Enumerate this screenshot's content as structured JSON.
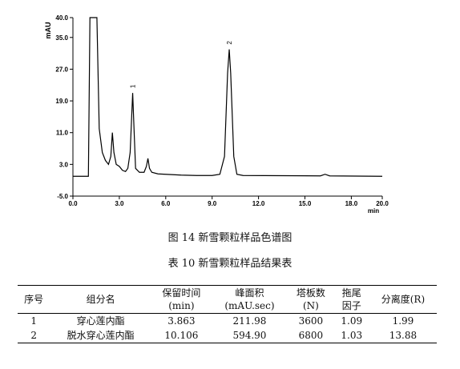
{
  "chart_data": {
    "type": "line",
    "y_label": "mAU",
    "x_label": "min",
    "x": [
      0,
      1.0,
      1.1,
      1.55,
      1.7,
      1.9,
      2.1,
      2.3,
      2.45,
      2.55,
      2.65,
      2.8,
      3.0,
      3.2,
      3.4,
      3.55,
      3.7,
      3.863,
      3.95,
      4.05,
      4.3,
      4.6,
      4.75,
      4.85,
      4.95,
      5.1,
      5.5,
      6.5,
      7.0,
      8.0,
      9.0,
      9.5,
      9.8,
      10.0,
      10.106,
      10.2,
      10.4,
      10.6,
      11.0,
      16.0,
      16.3,
      16.6,
      20.0
    ],
    "series": [
      {
        "color": "#000000",
        "values": [
          0,
          0,
          40,
          40,
          12,
          6,
          4,
          3,
          5,
          11,
          6,
          3,
          2.5,
          1.5,
          1.2,
          2,
          6,
          21,
          12,
          2,
          1,
          1,
          2.5,
          4.5,
          2,
          1,
          0.6,
          0.4,
          0.3,
          0.2,
          0.2,
          0.5,
          5,
          26,
          32,
          26,
          5,
          0.5,
          0.2,
          0.1,
          0.5,
          0.1,
          0
        ]
      }
    ],
    "xlim": [
      0,
      20
    ],
    "ylim": [
      -5,
      40
    ],
    "xticks": [
      {
        "value": 0,
        "label": "0.0"
      },
      {
        "value": 3,
        "label": "3.0"
      },
      {
        "value": 6,
        "label": "6.0"
      },
      {
        "value": 9,
        "label": "9.0"
      },
      {
        "value": 12,
        "label": "12.0"
      },
      {
        "value": 15,
        "label": "15.0"
      },
      {
        "value": 18,
        "label": "18.0"
      },
      {
        "value": 20,
        "label": "20.0"
      }
    ],
    "yticks": [
      {
        "value": -5,
        "label": "-5.0"
      },
      {
        "value": 3,
        "label": "3.0"
      },
      {
        "value": 11,
        "label": "11.0"
      },
      {
        "value": 19,
        "label": "19.0"
      },
      {
        "value": 27,
        "label": "27.0"
      },
      {
        "value": 35,
        "label": "35.0"
      },
      {
        "value": 40,
        "label": "40.0"
      }
    ],
    "annotations": [
      {
        "text": "1",
        "x": 3.863,
        "y": 21
      },
      {
        "text": "2",
        "x": 10.106,
        "y": 32
      }
    ]
  },
  "figure_caption": "图 14  新雪颗粒样品色谱图",
  "table_caption": "表 10  新雪颗粒样品结果表",
  "table": {
    "header": [
      [
        "序号"
      ],
      [
        "组分名"
      ],
      [
        "保留时间",
        "(min)"
      ],
      [
        "峰面积",
        "(mAU.sec)"
      ],
      [
        "塔板数",
        "(N)"
      ],
      [
        "拖尾",
        "因子"
      ],
      [
        "分离度(R)"
      ]
    ],
    "rows": [
      [
        "1",
        "穿心莲内酯",
        "3.863",
        "211.98",
        "3600",
        "1.09",
        "1.99"
      ],
      [
        "2",
        "脱水穿心莲内酯",
        "10.106",
        "594.90",
        "6800",
        "1.03",
        "13.88"
      ]
    ]
  }
}
